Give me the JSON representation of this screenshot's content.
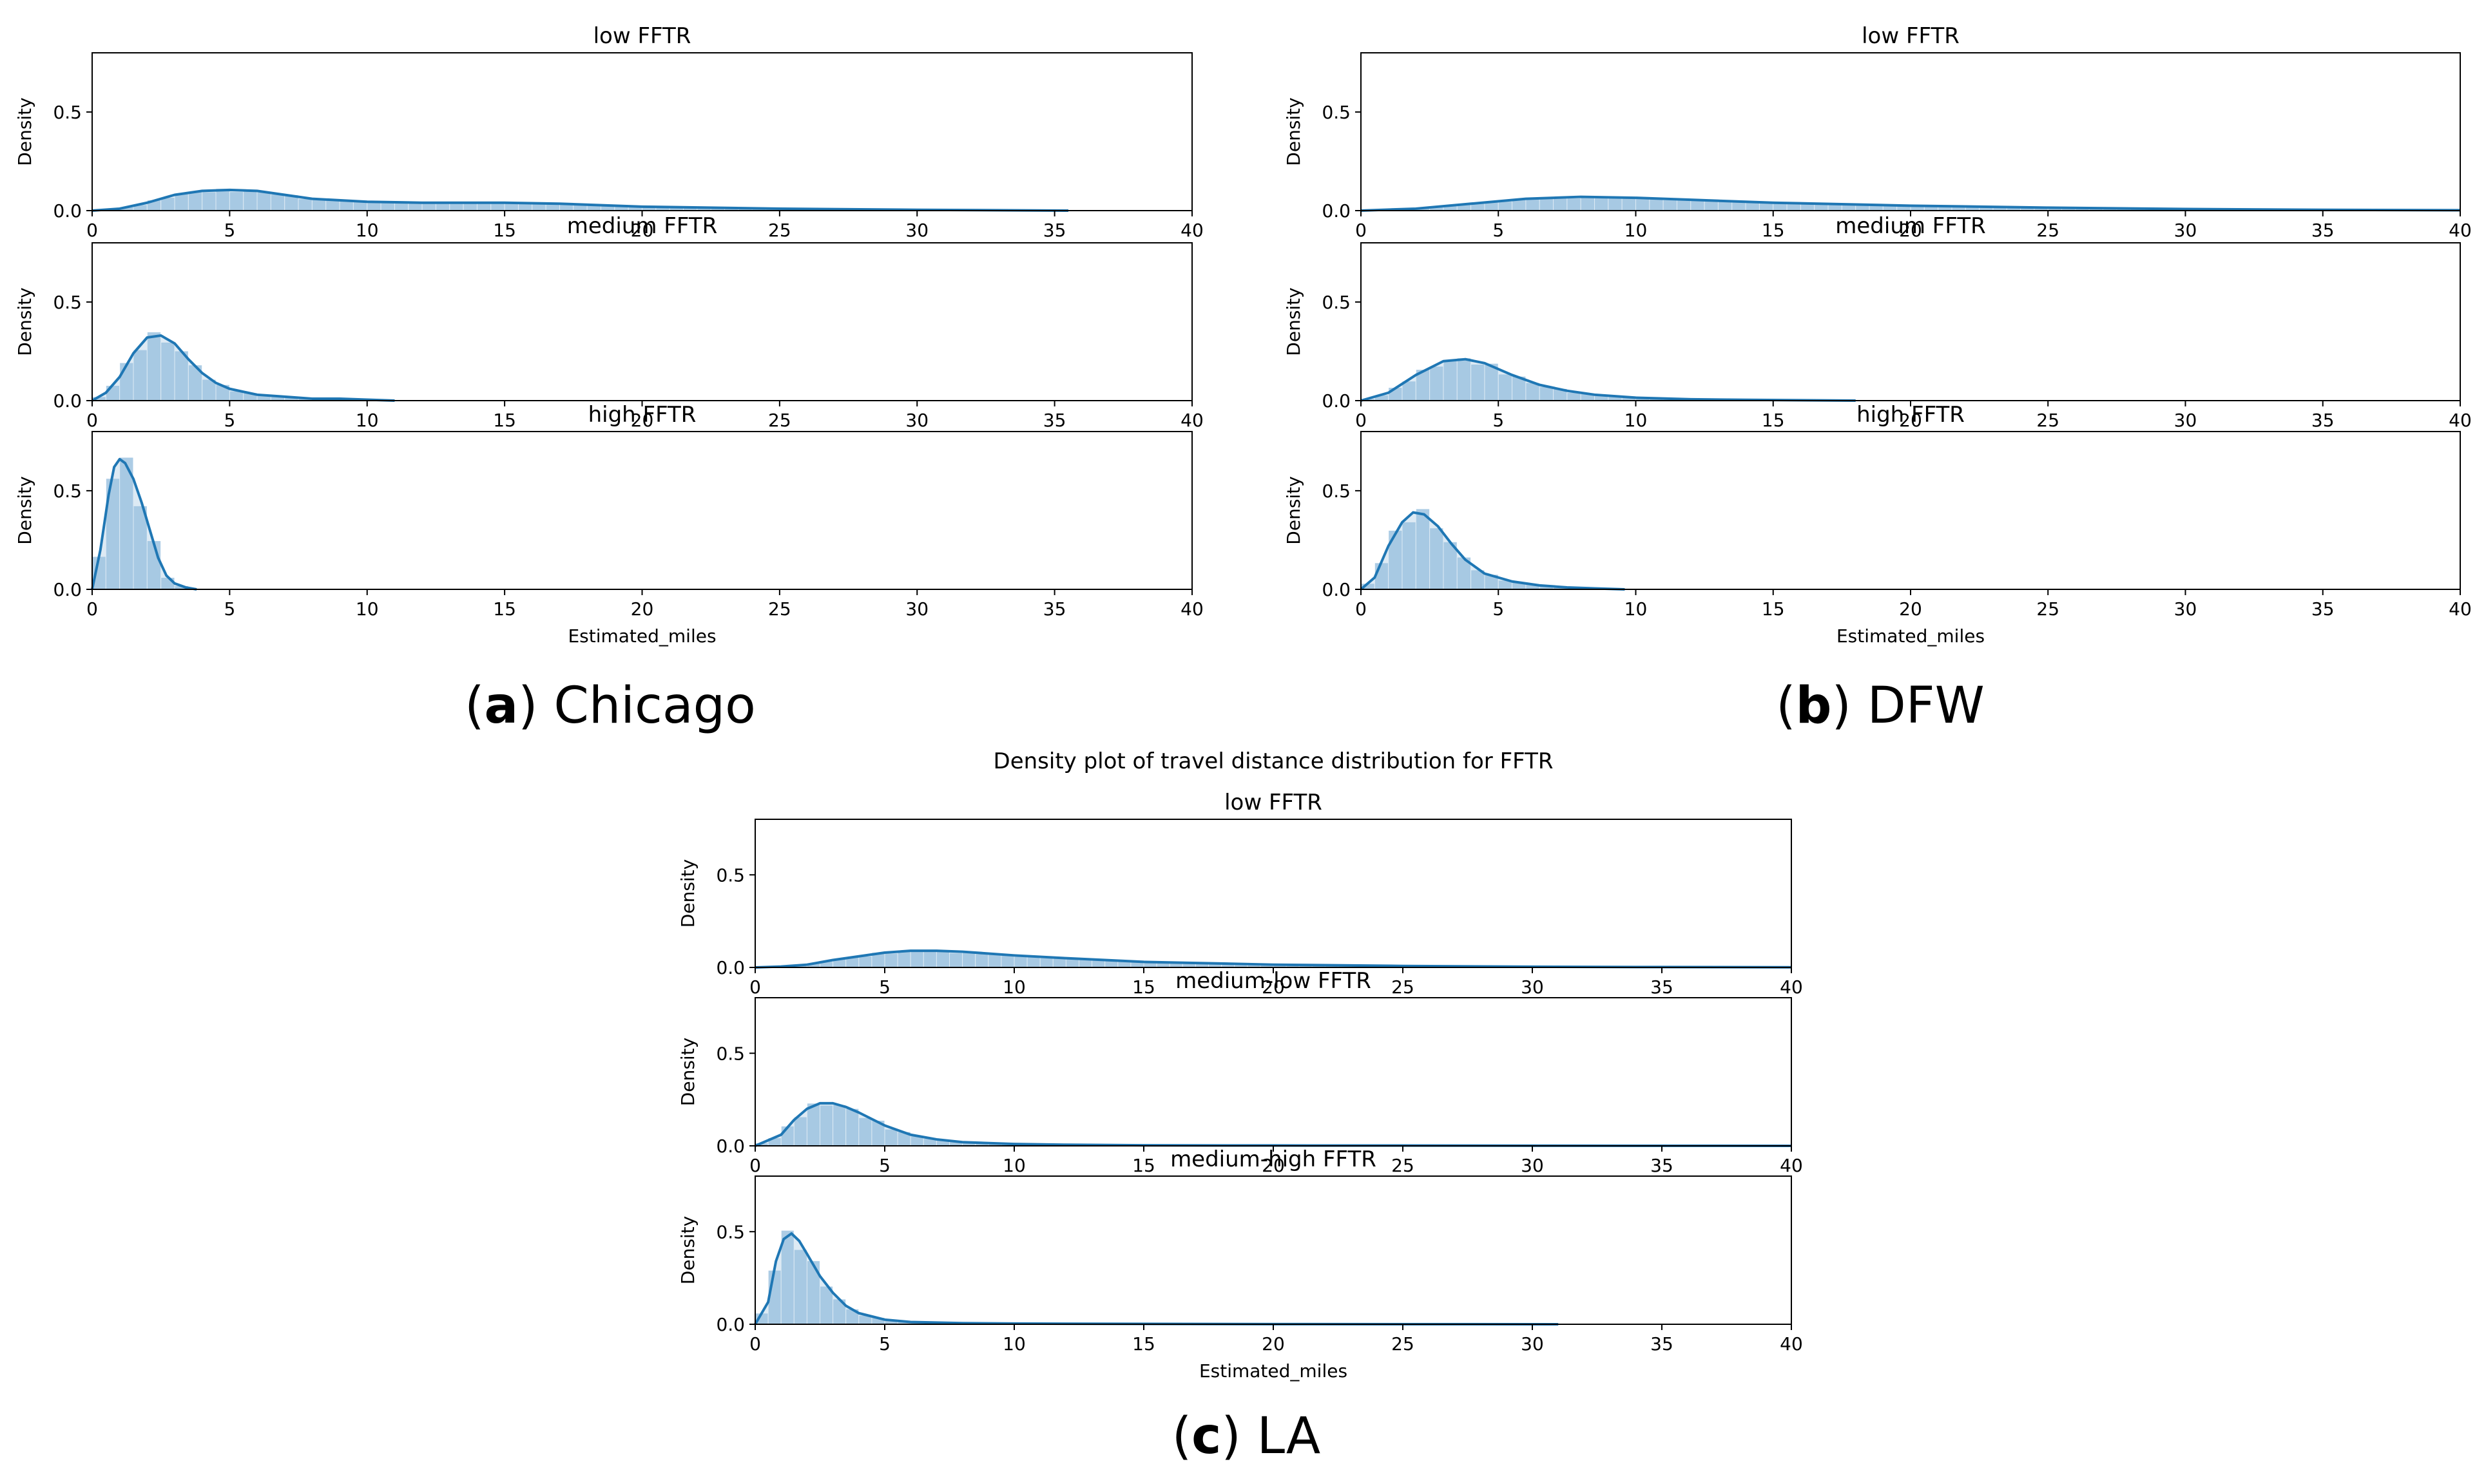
{
  "figure": {
    "colors": {
      "kde": "#1f77b4",
      "fill": "#9ec3e0",
      "axis": "#000000"
    },
    "captions": [
      {
        "letter": "a",
        "text": "Chicago"
      },
      {
        "letter": "b",
        "text": "DFW"
      },
      {
        "letter": "c",
        "text": "LA"
      }
    ]
  },
  "chart_data": [
    {
      "type": "area",
      "region": "Chicago",
      "suptitle": "",
      "xlabel": "Estimated_miles",
      "ylabel": "Density",
      "xlim": [
        0,
        40
      ],
      "ylim": [
        0,
        0.8
      ],
      "xticks": [
        0,
        5,
        10,
        15,
        20,
        25,
        30,
        35,
        40
      ],
      "yticks": [
        0.0,
        0.5
      ],
      "subplots": [
        {
          "title": "low FFTR",
          "x": [
            0,
            1,
            2,
            3,
            4,
            5,
            6,
            7,
            8,
            10,
            12,
            15,
            17,
            20,
            25,
            30,
            35.5
          ],
          "y": [
            0.0,
            0.01,
            0.04,
            0.08,
            0.1,
            0.105,
            0.1,
            0.08,
            0.06,
            0.045,
            0.04,
            0.04,
            0.035,
            0.02,
            0.01,
            0.004,
            0.0
          ]
        },
        {
          "title": "medium FFTR",
          "x": [
            0,
            0.5,
            1,
            1.5,
            2,
            2.5,
            3,
            3.5,
            4,
            4.5,
            5,
            6,
            7,
            8,
            9,
            10,
            11
          ],
          "y": [
            0.0,
            0.04,
            0.12,
            0.24,
            0.32,
            0.33,
            0.29,
            0.21,
            0.14,
            0.09,
            0.06,
            0.03,
            0.02,
            0.01,
            0.01,
            0.005,
            0.0
          ]
        },
        {
          "title": "high FFTR",
          "x": [
            0,
            0.3,
            0.6,
            0.8,
            1,
            1.2,
            1.5,
            1.8,
            2.1,
            2.4,
            2.7,
            3,
            3.4,
            3.8
          ],
          "y": [
            0.0,
            0.2,
            0.48,
            0.62,
            0.66,
            0.64,
            0.56,
            0.44,
            0.3,
            0.16,
            0.07,
            0.03,
            0.01,
            0.0
          ]
        }
      ]
    },
    {
      "type": "area",
      "region": "DFW",
      "suptitle": "",
      "xlabel": "Estimated_miles",
      "ylabel": "Density",
      "xlim": [
        0,
        40
      ],
      "ylim": [
        0,
        0.8
      ],
      "xticks": [
        0,
        5,
        10,
        15,
        20,
        25,
        30,
        35,
        40
      ],
      "yticks": [
        0.0,
        0.5
      ],
      "subplots": [
        {
          "title": "low FFTR",
          "x": [
            0,
            2,
            4,
            6,
            8,
            10,
            12,
            15,
            20,
            25,
            30,
            35,
            40
          ],
          "y": [
            0.0,
            0.01,
            0.035,
            0.06,
            0.07,
            0.065,
            0.055,
            0.04,
            0.025,
            0.015,
            0.008,
            0.004,
            0.002
          ]
        },
        {
          "title": "medium FFTR",
          "x": [
            0,
            1,
            2,
            3,
            3.8,
            4.5,
            5.5,
            6.5,
            7.5,
            8.5,
            10,
            12,
            14,
            16,
            18
          ],
          "y": [
            0.0,
            0.04,
            0.13,
            0.2,
            0.21,
            0.19,
            0.13,
            0.08,
            0.05,
            0.03,
            0.015,
            0.007,
            0.004,
            0.002,
            0.0
          ]
        },
        {
          "title": "high FFTR",
          "x": [
            0,
            0.5,
            1,
            1.5,
            1.9,
            2.3,
            2.8,
            3.3,
            3.8,
            4.5,
            5.5,
            6.5,
            7.5,
            8.5,
            9.6
          ],
          "y": [
            0.0,
            0.06,
            0.22,
            0.34,
            0.39,
            0.38,
            0.32,
            0.23,
            0.15,
            0.08,
            0.04,
            0.02,
            0.01,
            0.005,
            0.0
          ]
        }
      ]
    },
    {
      "type": "area",
      "region": "LA",
      "suptitle": "Density plot of travel distance distribution for FFTR",
      "xlabel": "Estimated_miles",
      "ylabel": "Density",
      "xlim": [
        0,
        40
      ],
      "ylim": [
        0,
        0.8
      ],
      "xticks": [
        0,
        5,
        10,
        15,
        20,
        25,
        30,
        35,
        40
      ],
      "yticks": [
        0.0,
        0.5
      ],
      "subplots": [
        {
          "title": "low FFTR",
          "x": [
            0,
            1,
            2,
            3,
            4,
            5,
            6,
            7,
            8,
            10,
            12,
            15,
            20,
            25,
            30,
            35,
            40
          ],
          "y": [
            0.0,
            0.005,
            0.015,
            0.04,
            0.06,
            0.08,
            0.09,
            0.09,
            0.085,
            0.065,
            0.05,
            0.03,
            0.015,
            0.008,
            0.004,
            0.002,
            0.001
          ]
        },
        {
          "title": "medium-low FFTR",
          "x": [
            0,
            1,
            1.5,
            2,
            2.5,
            3,
            3.5,
            4,
            5,
            6,
            7,
            8,
            10,
            12,
            15,
            20,
            30,
            40
          ],
          "y": [
            0.0,
            0.06,
            0.14,
            0.2,
            0.23,
            0.23,
            0.21,
            0.18,
            0.11,
            0.06,
            0.035,
            0.02,
            0.01,
            0.006,
            0.003,
            0.002,
            0.001,
            0.0
          ]
        },
        {
          "title": "medium-high FFTR",
          "x": [
            0,
            0.5,
            0.8,
            1.1,
            1.4,
            1.7,
            2,
            2.5,
            3,
            3.5,
            4,
            5,
            6,
            8,
            10,
            15,
            20,
            25,
            31
          ],
          "y": [
            0.0,
            0.12,
            0.34,
            0.46,
            0.49,
            0.45,
            0.38,
            0.26,
            0.17,
            0.1,
            0.06,
            0.025,
            0.012,
            0.006,
            0.004,
            0.002,
            0.001,
            0.0005,
            0.0
          ]
        }
      ]
    }
  ]
}
